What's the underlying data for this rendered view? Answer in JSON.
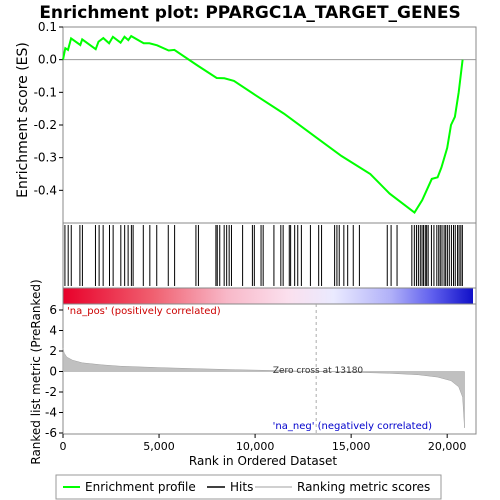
{
  "chart_data": {
    "type": "line",
    "title": "Enrichment plot: PPARGC1A_TARGET_GENES",
    "top_panel": {
      "ylabel": "Enrichment score (ES)",
      "ylim": [
        -0.5,
        0.1
      ],
      "yticks": [
        0.1,
        0.0,
        -0.1,
        -0.2,
        -0.3,
        -0.4
      ],
      "ytick_labels": [
        "0.1",
        "0.0",
        "-0.1",
        "-0.2",
        "-0.3",
        "-0.4"
      ],
      "series_name": "Enrichment profile",
      "color": "#00ff00",
      "points": [
        [
          0,
          0.0
        ],
        [
          120,
          0.035
        ],
        [
          260,
          0.03
        ],
        [
          420,
          0.065
        ],
        [
          900,
          0.045
        ],
        [
          1000,
          0.062
        ],
        [
          1700,
          0.032
        ],
        [
          1850,
          0.055
        ],
        [
          2100,
          0.066
        ],
        [
          2400,
          0.05
        ],
        [
          2600,
          0.07
        ],
        [
          3000,
          0.052
        ],
        [
          3200,
          0.07
        ],
        [
          3400,
          0.06
        ],
        [
          3550,
          0.072
        ],
        [
          4200,
          0.05
        ],
        [
          4500,
          0.05
        ],
        [
          4900,
          0.044
        ],
        [
          5500,
          0.028
        ],
        [
          5800,
          0.03
        ],
        [
          7000,
          -0.018
        ],
        [
          8000,
          -0.056
        ],
        [
          8400,
          -0.057
        ],
        [
          8900,
          -0.065
        ],
        [
          10000,
          -0.108
        ],
        [
          11500,
          -0.165
        ],
        [
          13180,
          -0.238
        ],
        [
          14500,
          -0.295
        ],
        [
          16000,
          -0.35
        ],
        [
          17000,
          -0.41
        ],
        [
          18300,
          -0.468
        ],
        [
          18700,
          -0.43
        ],
        [
          19200,
          -0.365
        ],
        [
          19500,
          -0.36
        ],
        [
          19700,
          -0.33
        ],
        [
          20000,
          -0.27
        ],
        [
          20200,
          -0.2
        ],
        [
          20400,
          -0.175
        ],
        [
          20600,
          -0.1
        ],
        [
          20800,
          0.0
        ]
      ]
    },
    "hits_panel": {
      "series_name": "Hits",
      "hit_positions": [
        100,
        270,
        430,
        880,
        1010,
        1690,
        1880,
        2090,
        2420,
        2610,
        3010,
        3210,
        3390,
        3560,
        3650,
        4180,
        4520,
        4880,
        5480,
        5810,
        6920,
        7050,
        7960,
        8030,
        8160,
        8390,
        8520,
        8650,
        8770,
        9350,
        9860,
        9960,
        10310,
        10420,
        10980,
        11340,
        11460,
        11780,
        11850,
        12060,
        12220,
        12410,
        12880,
        13310,
        13460,
        14140,
        14260,
        14380,
        14620,
        14820,
        15110,
        15430,
        16880,
        17080,
        17390,
        18160,
        18290,
        18400,
        18500,
        18600,
        18690,
        18770,
        18860,
        18930,
        19010,
        19180,
        19310,
        19460,
        19560,
        19640,
        19730,
        19840,
        19920,
        20010,
        20110,
        20220,
        20330,
        20420,
        20540,
        20620,
        20710,
        20790
      ],
      "gradient_left_label": "",
      "gradient_right_label": ""
    },
    "bottom_panel": {
      "ylabel": "Ranked list metric (PreRanked)",
      "xlabel": "Rank in Ordered Dataset",
      "ylim": [
        -6,
        6
      ],
      "yticks": [
        6,
        4,
        2,
        0,
        -2,
        -4,
        -6
      ],
      "ytick_labels": [
        "6",
        "4",
        "2",
        "0",
        "-2",
        "-4",
        "-6"
      ],
      "xlim": [
        0,
        21500
      ],
      "xticks": [
        0,
        5000,
        10000,
        15000,
        20000
      ],
      "xtick_labels": [
        "0",
        "5,000",
        "10,000",
        "15,000",
        "20,000"
      ],
      "series_name": "Ranking metric scores",
      "metric_curve": [
        [
          0,
          2.3
        ],
        [
          60,
          1.8
        ],
        [
          200,
          1.4
        ],
        [
          500,
          1.1
        ],
        [
          1000,
          0.85
        ],
        [
          2000,
          0.65
        ],
        [
          3000,
          0.52
        ],
        [
          5000,
          0.38
        ],
        [
          7000,
          0.27
        ],
        [
          9000,
          0.18
        ],
        [
          11000,
          0.1
        ],
        [
          13180,
          0.0
        ],
        [
          15000,
          -0.07
        ],
        [
          17000,
          -0.18
        ],
        [
          18500,
          -0.32
        ],
        [
          19500,
          -0.55
        ],
        [
          20200,
          -0.9
        ],
        [
          20600,
          -1.5
        ],
        [
          20800,
          -2.5
        ],
        [
          20900,
          -5.5
        ]
      ],
      "zero_cross_rank": 13180,
      "zero_cross_label": "Zero cross at 13180",
      "pos_label": "'na_pos' (positively correlated)",
      "neg_label": "'na_neg' (negatively correlated)",
      "pos_color": "#cc0000",
      "neg_color": "#0000cc"
    },
    "legend": {
      "placement": "bottom",
      "items": [
        {
          "label": "Enrichment profile",
          "color": "#00ff00"
        },
        {
          "label": "Hits",
          "color": "#000000"
        },
        {
          "label": "Ranking metric scores",
          "color": "#c0c0c0"
        }
      ]
    }
  }
}
